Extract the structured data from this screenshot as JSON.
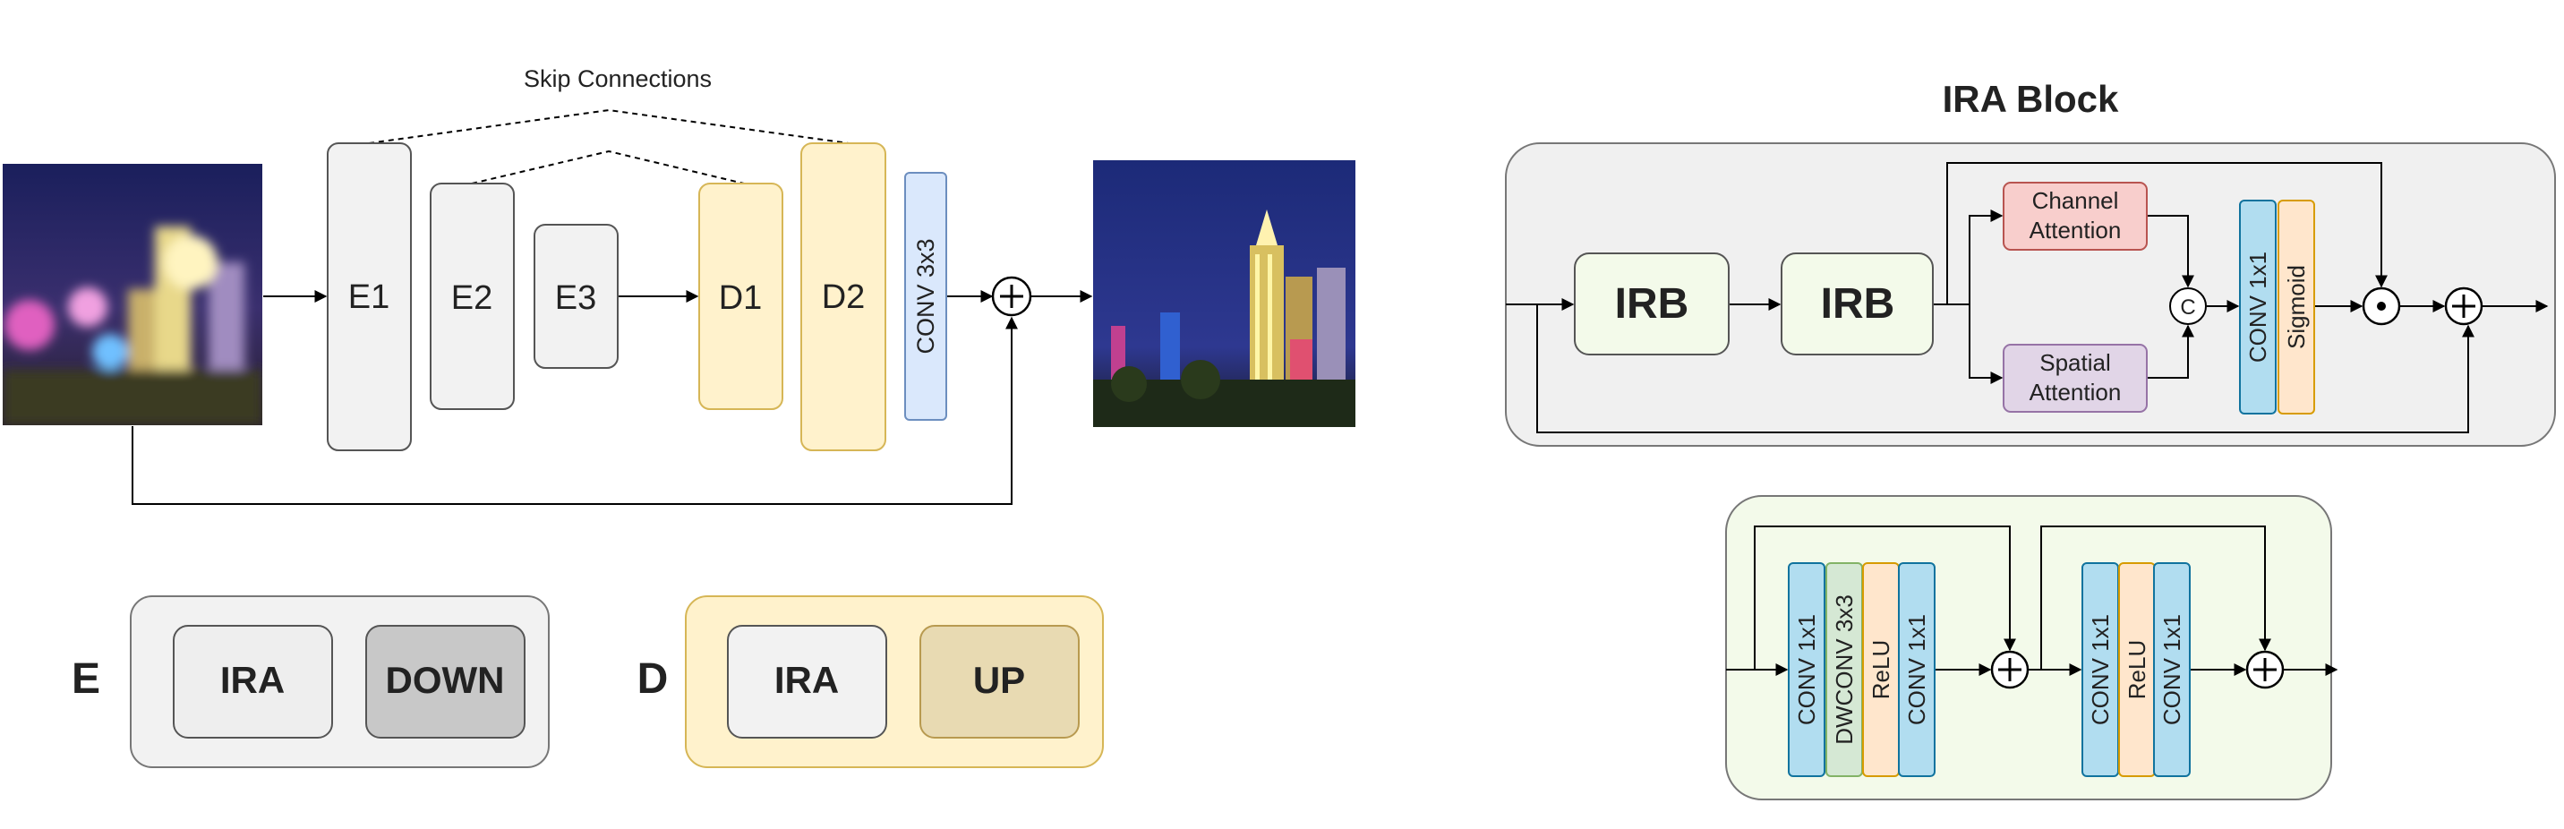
{
  "colors": {
    "encoder_fill": "#f2f2f2",
    "encoder_stroke": "#555555",
    "decoder_fill": "#fff2cc",
    "decoder_stroke": "#d6b656",
    "conv_fill": "#dae8fc",
    "conv_stroke": "#6c8ebf",
    "cyan_fill": "#b1ddf0",
    "cyan_stroke": "#10739e",
    "orange_fill": "#ffe6cc",
    "orange_stroke": "#d79b00",
    "green_fill": "#d5e8d4",
    "green_stroke": "#82b366",
    "red_fill": "#f8cecc",
    "red_stroke": "#b85450",
    "purple_fill": "#e1d5e7",
    "purple_stroke": "#9673a6",
    "panel_gray": "#f0f0f0",
    "panel_green": "#f3faea",
    "down_fill": "#c8c8c8",
    "up_fill": "#e8dab2"
  },
  "unet": {
    "skip_label": "Skip Connections",
    "e1": "E1",
    "e2": "E2",
    "e3": "E3",
    "d1": "D1",
    "d2": "D2",
    "conv": "CONV 3x3",
    "input_image_icon": "blurry-night-city-photo",
    "output_image_icon": "sharp-night-city-photo"
  },
  "legend": {
    "e_letter": "E",
    "e_ira": "IRA",
    "e_down": "DOWN",
    "d_letter": "D",
    "d_ira": "IRA",
    "d_up": "UP"
  },
  "ira": {
    "title": "IRA Block",
    "irb1": "IRB",
    "irb2": "IRB",
    "channel_att_1": "Channel",
    "channel_att_2": "Attention",
    "spatial_att_1": "Spatial",
    "spatial_att_2": "Attention",
    "concat": "C",
    "conv1x1": "CONV 1x1",
    "sigmoid": "Sigmoid"
  },
  "irb": {
    "block1": [
      "CONV 1x1",
      "DWCONV 3x3",
      "ReLU",
      "CONV 1x1"
    ],
    "block2": [
      "CONV 1x1",
      "ReLU",
      "CONV 1x1"
    ]
  }
}
